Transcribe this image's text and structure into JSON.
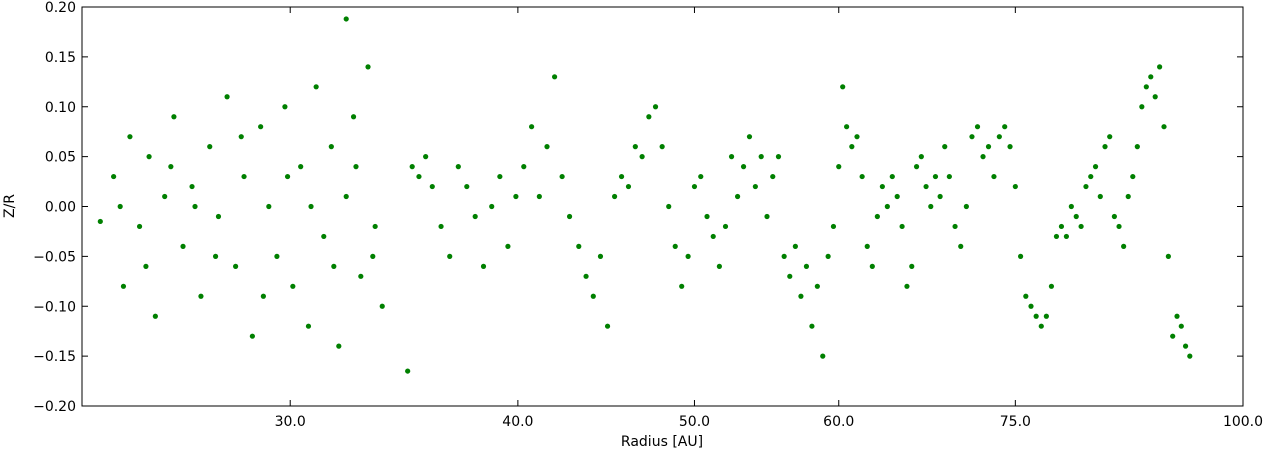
{
  "chart_data": {
    "type": "scatter",
    "xlabel": "Radius [AU]",
    "ylabel": "Z/R",
    "xscale": "log",
    "color": "#008000",
    "xlim": [
      23.06,
      100
    ],
    "ylim": [
      -0.2,
      0.2
    ],
    "xticks": [
      {
        "value": 30,
        "label": "30.0"
      },
      {
        "value": 40,
        "label": "40.0"
      },
      {
        "value": 50,
        "label": "50.0"
      },
      {
        "value": 60,
        "label": "60.0"
      },
      {
        "value": 75,
        "label": "75.0"
      },
      {
        "value": 100,
        "label": "100.0"
      }
    ],
    "yticks": [
      {
        "value": -0.2,
        "label": "−0.20"
      },
      {
        "value": -0.15,
        "label": "−0.15"
      },
      {
        "value": -0.1,
        "label": "−0.10"
      },
      {
        "value": -0.05,
        "label": "−0.05"
      },
      {
        "value": 0,
        "label": "0.00"
      },
      {
        "value": 0.05,
        "label": "0.05"
      },
      {
        "value": 0.1,
        "label": "0.10"
      },
      {
        "value": 0.15,
        "label": "0.15"
      },
      {
        "value": 0.2,
        "label": "0.20"
      }
    ],
    "x": [
      23.6,
      24.0,
      24.3,
      24.5,
      24.8,
      25.1,
      25.3,
      25.6,
      25.9,
      26.2,
      26.5,
      26.8,
      27.1,
      27.4,
      27.7,
      28.0,
      28.3,
      28.6,
      28.9,
      29.2,
      29.5,
      29.8,
      30.1,
      30.4,
      30.7,
      31.0,
      31.3,
      31.6,
      31.9,
      32.2,
      32.5,
      32.8,
      33.1,
      33.4,
      33.7,
      24.2,
      25.0,
      25.8,
      26.6,
      27.3,
      28.2,
      29.0,
      29.9,
      30.8,
      31.7,
      32.6,
      33.3,
      32.2,
      34.8,
      35.0,
      35.3,
      35.6,
      35.9,
      36.3,
      36.7,
      37.1,
      37.5,
      37.9,
      38.3,
      38.7,
      39.1,
      39.5,
      39.9,
      40.3,
      40.7,
      41.1,
      41.5,
      41.9,
      42.3,
      42.7,
      43.2,
      43.6,
      44.0,
      44.4,
      44.8,
      45.2,
      45.6,
      46.0,
      46.4,
      46.8,
      47.2,
      47.6,
      48.0,
      48.4,
      48.8,
      49.2,
      49.6,
      50.0,
      50.4,
      50.8,
      51.2,
      51.6,
      52.0,
      52.4,
      52.8,
      53.2,
      53.6,
      54.0,
      54.4,
      54.8,
      55.2,
      55.6,
      56.0,
      56.4,
      56.8,
      57.2,
      57.6,
      58.0,
      58.4,
      58.8,
      59.2,
      59.6,
      60.0,
      60.3,
      60.6,
      61.0,
      61.4,
      61.8,
      62.2,
      62.6,
      63.0,
      63.4,
      63.8,
      64.2,
      64.6,
      65.0,
      65.4,
      65.8,
      66.2,
      66.6,
      67.0,
      67.4,
      67.8,
      68.2,
      68.6,
      69.0,
      69.5,
      70.0,
      70.5,
      71.0,
      71.5,
      72.0,
      72.5,
      73.0,
      73.5,
      74.0,
      74.5,
      75.0,
      75.5,
      76.0,
      76.5,
      77.0,
      77.5,
      78.0,
      78.5,
      79.0,
      79.5,
      80.0,
      80.5,
      81.0,
      81.5,
      82.0,
      82.5,
      83.0,
      83.5,
      84.0,
      84.5,
      85.0,
      85.5,
      86.0,
      86.5,
      87.0,
      87.5,
      88.0,
      88.5,
      89.0,
      89.5,
      90.0,
      90.5,
      91.0,
      91.5,
      92.0,
      92.5,
      93.0,
      93.5
    ],
    "y": [
      -0.015,
      0.03,
      -0.08,
      0.07,
      -0.02,
      0.05,
      -0.11,
      0.01,
      0.09,
      -0.04,
      0.02,
      -0.09,
      0.06,
      -0.01,
      0.11,
      -0.06,
      0.03,
      -0.13,
      0.08,
      0.0,
      -0.05,
      0.1,
      -0.08,
      0.04,
      -0.12,
      0.12,
      -0.03,
      0.06,
      -0.14,
      0.01,
      0.09,
      -0.07,
      0.14,
      -0.02,
      -0.1,
      0.0,
      -0.06,
      0.04,
      0.0,
      -0.05,
      0.07,
      -0.09,
      0.03,
      0.0,
      -0.06,
      0.04,
      -0.05,
      0.188,
      -0.165,
      0.04,
      0.03,
      0.05,
      0.02,
      -0.02,
      -0.05,
      0.04,
      0.02,
      -0.01,
      -0.06,
      0.0,
      0.03,
      -0.04,
      0.01,
      0.04,
      0.08,
      0.01,
      0.06,
      0.13,
      0.03,
      -0.01,
      -0.04,
      -0.07,
      -0.09,
      -0.05,
      -0.12,
      0.01,
      0.03,
      0.02,
      0.06,
      0.05,
      0.09,
      0.1,
      0.06,
      0.0,
      -0.04,
      -0.08,
      -0.05,
      0.02,
      0.03,
      -0.01,
      -0.03,
      -0.06,
      -0.02,
      0.05,
      0.01,
      0.04,
      0.07,
      0.02,
      0.05,
      -0.01,
      0.03,
      0.05,
      -0.05,
      -0.07,
      -0.04,
      -0.09,
      -0.06,
      -0.12,
      -0.08,
      -0.15,
      -0.05,
      -0.02,
      0.04,
      0.12,
      0.08,
      0.06,
      0.07,
      0.03,
      -0.04,
      -0.06,
      -0.01,
      0.02,
      0.0,
      0.03,
      0.01,
      -0.02,
      -0.08,
      -0.06,
      0.04,
      0.05,
      0.02,
      0.0,
      0.03,
      0.01,
      0.06,
      0.03,
      -0.02,
      -0.04,
      0.0,
      0.07,
      0.08,
      0.05,
      0.06,
      0.03,
      0.07,
      0.08,
      0.06,
      0.02,
      -0.05,
      -0.09,
      -0.1,
      -0.11,
      -0.12,
      -0.11,
      -0.08,
      -0.03,
      -0.02,
      -0.03,
      0.0,
      -0.01,
      -0.02,
      0.02,
      0.03,
      0.04,
      0.01,
      0.06,
      0.07,
      -0.01,
      -0.02,
      -0.04,
      0.01,
      0.03,
      0.06,
      0.1,
      0.12,
      0.13,
      0.11,
      0.14,
      0.08,
      -0.05,
      -0.13,
      -0.11,
      -0.12,
      -0.14,
      -0.15
    ]
  }
}
